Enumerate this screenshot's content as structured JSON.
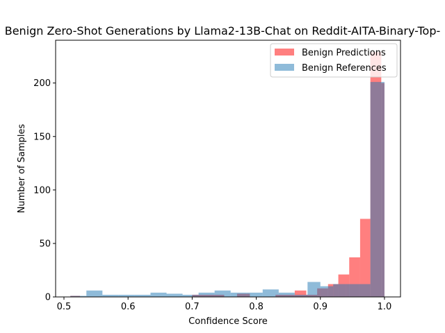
{
  "chart_data": {
    "type": "bar",
    "title": "Benign Zero-Shot Generations by Llama2-13B-Chat on Reddit-AITA-Binary-Top-",
    "xlabel": "Confidence Score",
    "ylabel": "Number of Samples",
    "xlim": [
      0.487,
      1.025
    ],
    "ylim": [
      0,
      240
    ],
    "xticks": [
      "0.5",
      "0.6",
      "0.7",
      "0.8",
      "0.9",
      "1.0"
    ],
    "xtick_values": [
      0.5,
      0.6,
      0.7,
      0.8,
      0.9,
      1.0
    ],
    "yticks": [
      "0",
      "50",
      "100",
      "150",
      "200"
    ],
    "ytick_values": [
      0,
      50,
      100,
      150,
      200
    ],
    "grid": false,
    "legend_position": "top-right",
    "series": [
      {
        "name": "Benign Predictions",
        "color": "#ff0000",
        "opacity": 0.5,
        "bins": [
          [
            0.51,
            0.525,
            1
          ],
          [
            0.7,
            0.75,
            2
          ],
          [
            0.77,
            0.79,
            3
          ],
          [
            0.83,
            0.86,
            2
          ],
          [
            0.86,
            0.878,
            6
          ],
          [
            0.878,
            0.895,
            2
          ],
          [
            0.895,
            0.912,
            8
          ],
          [
            0.912,
            0.928,
            12
          ],
          [
            0.928,
            0.945,
            21
          ],
          [
            0.945,
            0.962,
            37
          ],
          [
            0.962,
            0.978,
            73
          ],
          [
            0.978,
            0.995,
            229
          ],
          [
            0.995,
            1.0,
            200
          ]
        ]
      },
      {
        "name": "Benign References",
        "color": "#1f77b4",
        "opacity": 0.5,
        "bins": [
          [
            0.51,
            0.535,
            1
          ],
          [
            0.535,
            0.56,
            6
          ],
          [
            0.56,
            0.585,
            2
          ],
          [
            0.585,
            0.61,
            2
          ],
          [
            0.61,
            0.635,
            2
          ],
          [
            0.635,
            0.66,
            4
          ],
          [
            0.66,
            0.685,
            3
          ],
          [
            0.685,
            0.71,
            2
          ],
          [
            0.71,
            0.735,
            4
          ],
          [
            0.735,
            0.76,
            6
          ],
          [
            0.76,
            0.785,
            4
          ],
          [
            0.785,
            0.81,
            4
          ],
          [
            0.81,
            0.835,
            7
          ],
          [
            0.835,
            0.86,
            4
          ],
          [
            0.86,
            0.88,
            2
          ],
          [
            0.88,
            0.9,
            14
          ],
          [
            0.9,
            0.92,
            10
          ],
          [
            0.92,
            0.94,
            12
          ],
          [
            0.94,
            0.96,
            12
          ],
          [
            0.96,
            0.978,
            12
          ],
          [
            0.978,
            0.995,
            201
          ],
          [
            0.995,
            1.0,
            201
          ]
        ]
      }
    ]
  }
}
